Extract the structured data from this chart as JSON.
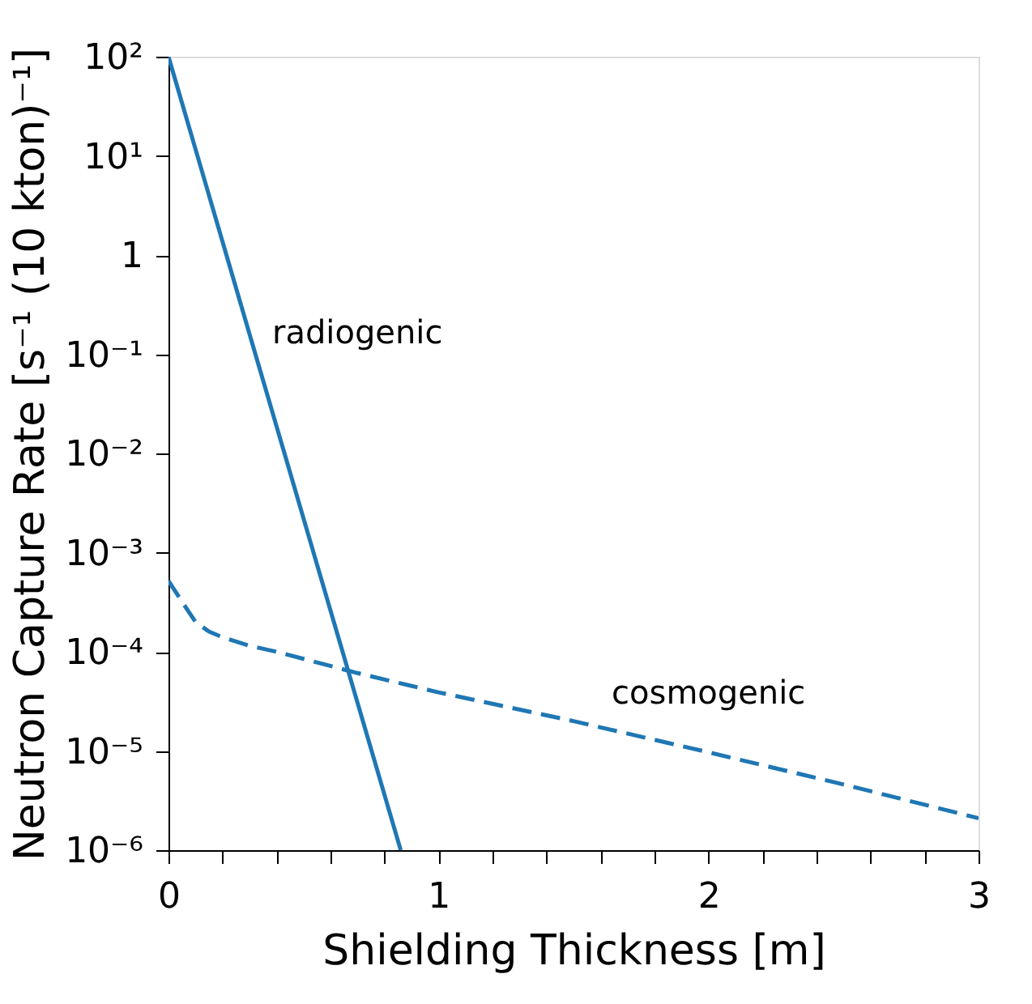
{
  "chart_data": {
    "type": "line",
    "xlabel": "Shielding Thickness [m]",
    "ylabel": "Neutron Capture Rate [s⁻¹ (10 kton)⁻¹]",
    "x": [
      0,
      0.3,
      0.86
    ],
    "series": [
      {
        "name": "radiogenic",
        "color": "#1f77b4",
        "line_style": "solid",
        "values": [
          100,
          0.16,
          1e-06
        ]
      },
      {
        "name": "cosmogenic",
        "color": "#1f77b4",
        "line_style": "dashed",
        "x": [
          0,
          0.05,
          0.1,
          0.15,
          0.2,
          0.3,
          0.4,
          0.7,
          1.0,
          1.5,
          2.0,
          2.5,
          3.0
        ],
        "values": [
          0.00052,
          0.00032,
          0.0002,
          0.00016,
          0.00014,
          0.000115,
          0.0001,
          6.1e-05,
          3.9e-05,
          2e-05,
          9.7e-06,
          4.6e-06,
          2.1e-06
        ]
      }
    ],
    "log": "y",
    "xlim": [
      0,
      3
    ],
    "ylim": [
      1e-06,
      100
    ],
    "xticks": [
      0,
      {
        "value": 0.2,
        "label": null
      },
      {
        "value": 0.4,
        "label": null
      },
      {
        "value": 0.6,
        "label": null
      },
      {
        "value": 0.8,
        "label": null
      },
      1,
      {
        "value": 1.2,
        "label": null
      },
      {
        "value": 1.4,
        "label": null
      },
      {
        "value": 1.6,
        "label": null
      },
      {
        "value": 1.8,
        "label": null
      },
      2,
      {
        "value": 2.2,
        "label": null
      },
      {
        "value": 2.4,
        "label": null
      },
      {
        "value": 2.6,
        "label": null
      },
      {
        "value": 2.8,
        "label": null
      },
      3
    ],
    "yticks": [
      {
        "value": 1e-06,
        "label": "10⁻⁶"
      },
      {
        "value": 1e-05,
        "label": "10⁻⁵"
      },
      {
        "value": 0.0001,
        "label": "10⁻⁴"
      },
      {
        "value": 0.001,
        "label": "10⁻³"
      },
      {
        "value": 0.01,
        "label": "10⁻²"
      },
      {
        "value": 0.1,
        "label": "10⁻¹"
      },
      1,
      {
        "value": 10,
        "label": "10¹"
      },
      {
        "value": 100,
        "label": "10²"
      }
    ],
    "grid": false,
    "legend": false
  }
}
